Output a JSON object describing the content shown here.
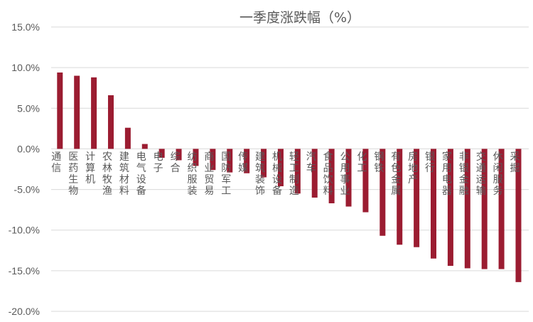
{
  "chart_data": {
    "type": "bar",
    "title": "一季度涨跌幅（%）",
    "xlabel": "",
    "ylabel": "",
    "ylim": [
      -20,
      15
    ],
    "yticks": [
      "15.0%",
      "10.0%",
      "5.0%",
      "0.0%",
      "-5.0%",
      "-10.0%",
      "-15.0%",
      "-20.0%"
    ],
    "grid": true,
    "bar_color": "#9b1c31",
    "categories": [
      "通信",
      "医药生物",
      "计算机",
      "农林牧渔",
      "建筑材料",
      "电气设备",
      "电子",
      "综合",
      "纺织服装",
      "商业贸易",
      "国防军工",
      "传媒",
      "建筑装饰",
      "机械设备",
      "轻工制造",
      "汽车",
      "食品饮料",
      "公用事业",
      "化工",
      "钢铁",
      "有色金属",
      "房地产",
      "银行",
      "家用电器",
      "非银金融",
      "交通运输",
      "休闲服务",
      "采掘"
    ],
    "values": [
      9.4,
      9.0,
      8.8,
      6.6,
      2.6,
      0.6,
      -1.1,
      -1.4,
      -2.1,
      -2.6,
      -2.9,
      -3.0,
      -3.5,
      -4.6,
      -5.5,
      -6.0,
      -6.7,
      -7.1,
      -7.8,
      -10.7,
      -11.8,
      -12.1,
      -13.5,
      -14.4,
      -14.7,
      -14.8,
      -14.8,
      -16.4
    ]
  }
}
